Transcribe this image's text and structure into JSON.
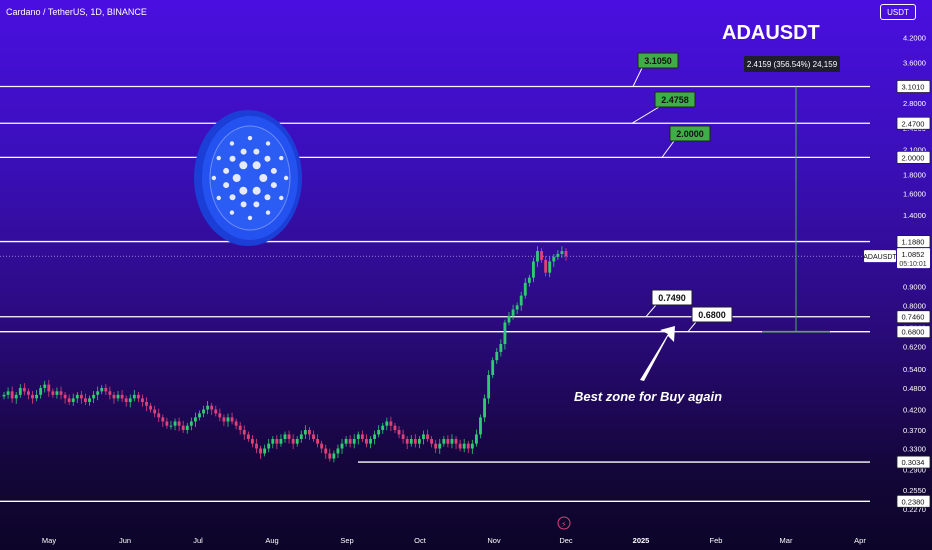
{
  "header": {
    "instrument": "Cardano / TetherUS, 1D, BINANCE",
    "currency_badge": "USDT",
    "title": "ADAUSDT"
  },
  "annotation": {
    "text": "Best zone for Buy again",
    "range_label": "2.4159 (356.54%) 24,159"
  },
  "colors": {
    "up": "#2ecc71",
    "down": "#e0407a",
    "level_line": "#ffffff",
    "green_label_bg": "#3fae49",
    "measure_line": "#4caf50"
  },
  "chart_data": {
    "type": "candlestick",
    "title": "ADAUSDT",
    "y_scale": "log",
    "x_ticks": [
      "May",
      "Jun",
      "Jul",
      "Aug",
      "Sep",
      "Oct",
      "Nov",
      "Dec",
      "2025",
      "Feb",
      "Mar",
      "Apr"
    ],
    "y_ticks": [
      "4.2000",
      "3.6000",
      "3.1000",
      "2.8000",
      "2.4000",
      "2.1000",
      "1.8000",
      "1.6000",
      "1.4000",
      "1.2000",
      "0.9000",
      "0.8000",
      "0.7000",
      "0.6200",
      "0.5400",
      "0.4800",
      "0.4200",
      "0.3700",
      "0.3300",
      "0.2900",
      "0.2550",
      "0.2270"
    ],
    "last_price": {
      "symbol": "ADAUSDT",
      "price": "1.0852",
      "countdown": "05:10:01"
    },
    "horizontal_levels": [
      {
        "price": 3.101,
        "label": "3.1010"
      },
      {
        "price": 2.47,
        "label": "2.4700"
      },
      {
        "price": 2.0,
        "label": "2.0000"
      },
      {
        "price": 1.188,
        "label": "1.1880"
      },
      {
        "price": 0.746,
        "label": "0.7460"
      },
      {
        "price": 0.68,
        "label": "0.6800"
      },
      {
        "price": 0.3034,
        "label": "0.3034"
      },
      {
        "price": 0.238,
        "label": "0.2380"
      }
    ],
    "target_labels": [
      {
        "text": "3.1050",
        "style": "green",
        "price": 3.105
      },
      {
        "text": "2.4758",
        "style": "green",
        "price": 2.4758
      },
      {
        "text": "2.0000",
        "style": "green",
        "price": 2.0
      },
      {
        "text": "0.7490",
        "style": "white",
        "price": 0.749
      },
      {
        "text": "0.6800",
        "style": "white",
        "price": 0.68
      }
    ],
    "series": [
      {
        "name": "ADAUSDT",
        "close": [
          0.46,
          0.47,
          0.45,
          0.46,
          0.48,
          0.47,
          0.46,
          0.45,
          0.46,
          0.48,
          0.49,
          0.47,
          0.46,
          0.47,
          0.46,
          0.45,
          0.44,
          0.45,
          0.46,
          0.45,
          0.44,
          0.45,
          0.46,
          0.47,
          0.48,
          0.47,
          0.46,
          0.45,
          0.46,
          0.45,
          0.44,
          0.45,
          0.46,
          0.45,
          0.44,
          0.43,
          0.42,
          0.41,
          0.4,
          0.39,
          0.38,
          0.38,
          0.39,
          0.38,
          0.37,
          0.38,
          0.39,
          0.4,
          0.41,
          0.42,
          0.43,
          0.42,
          0.41,
          0.4,
          0.39,
          0.4,
          0.39,
          0.38,
          0.37,
          0.36,
          0.35,
          0.34,
          0.33,
          0.32,
          0.33,
          0.34,
          0.35,
          0.34,
          0.35,
          0.36,
          0.35,
          0.34,
          0.35,
          0.36,
          0.37,
          0.36,
          0.35,
          0.34,
          0.33,
          0.32,
          0.31,
          0.32,
          0.33,
          0.34,
          0.35,
          0.34,
          0.35,
          0.36,
          0.35,
          0.34,
          0.35,
          0.36,
          0.37,
          0.38,
          0.39,
          0.38,
          0.37,
          0.36,
          0.35,
          0.34,
          0.35,
          0.34,
          0.35,
          0.36,
          0.35,
          0.34,
          0.33,
          0.34,
          0.35,
          0.34,
          0.35,
          0.34,
          0.33,
          0.34,
          0.33,
          0.34,
          0.36,
          0.4,
          0.45,
          0.52,
          0.57,
          0.6,
          0.63,
          0.72,
          0.75,
          0.78,
          0.8,
          0.85,
          0.92,
          0.95,
          1.05,
          1.12,
          1.06,
          0.98,
          1.05,
          1.08,
          1.1,
          1.12,
          1.0852
        ]
      }
    ],
    "y_range": [
      0.22,
      4.4
    ]
  }
}
